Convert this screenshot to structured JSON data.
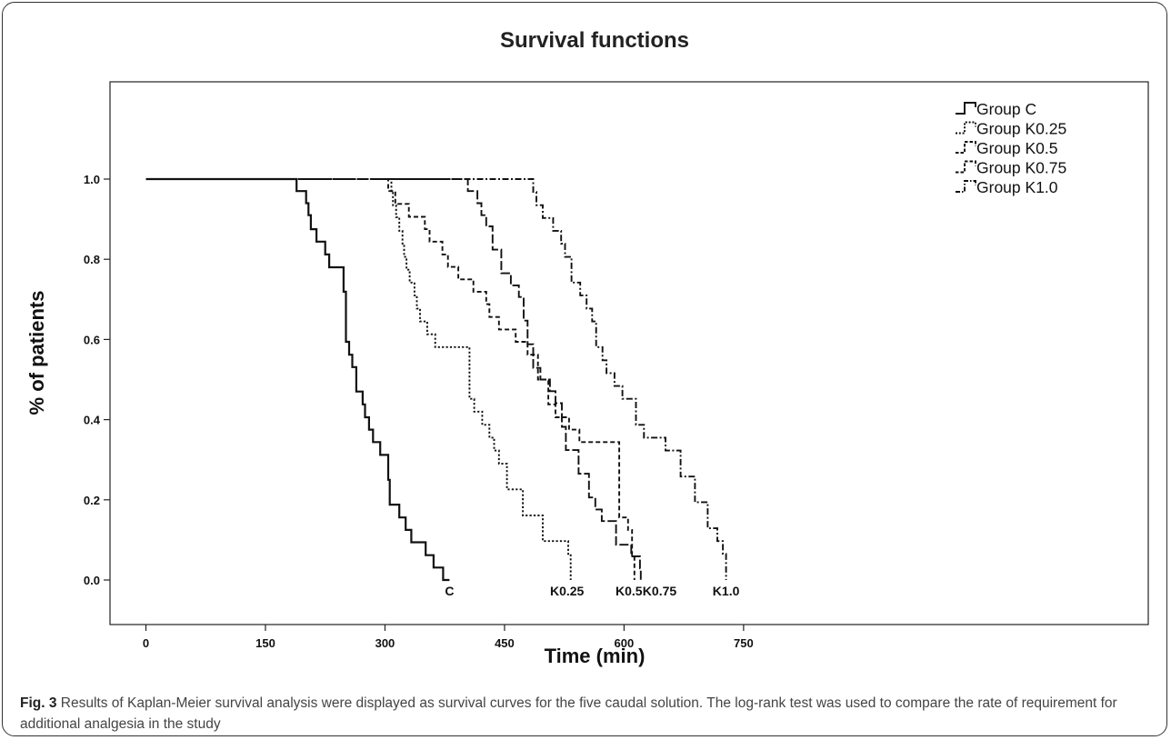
{
  "chart_data": {
    "type": "line",
    "title": "Survival functions",
    "xlabel": "Time (min)",
    "ylabel": "% of patients",
    "xlim": [
      -20,
      800
    ],
    "ylim": [
      -0.05,
      1.05
    ],
    "x_ticks": [
      0,
      150,
      300,
      450,
      600,
      750
    ],
    "y_ticks": [
      0.0,
      0.2,
      0.4,
      0.6,
      0.8,
      1.0
    ],
    "x_tick_labels": [
      "0",
      "150",
      "300",
      "450",
      "600",
      "750"
    ],
    "y_tick_labels": [
      "0.0",
      "0.2",
      "0.4",
      "0.6",
      "0.8",
      "1.0"
    ],
    "legend_position": "top-right",
    "step": true,
    "series": [
      {
        "name": "Group C",
        "end_label": "C",
        "dash": "solid",
        "x": [
          0,
          185,
          189,
          201,
          204,
          207,
          214,
          225,
          230,
          248,
          251,
          255,
          259,
          264,
          272,
          275,
          280,
          285,
          294,
          304,
          306,
          318,
          326,
          333,
          351,
          361,
          373,
          381
        ],
        "y": [
          1.0,
          1.0,
          0.97,
          0.94,
          0.91,
          0.875,
          0.844,
          0.812,
          0.78,
          0.719,
          0.594,
          0.562,
          0.531,
          0.47,
          0.438,
          0.406,
          0.375,
          0.344,
          0.312,
          0.25,
          0.188,
          0.156,
          0.125,
          0.094,
          0.062,
          0.031,
          0.0,
          0.0
        ]
      },
      {
        "name": "Group K0.25",
        "end_label": "K0.25",
        "dash": "dotted",
        "x": [
          0,
          305,
          308,
          310,
          314,
          318,
          322,
          324,
          327,
          331,
          337,
          340,
          344,
          353,
          363,
          406,
          412,
          422,
          431,
          437,
          443,
          453,
          473,
          498,
          530,
          533
        ],
        "y": [
          1.0,
          1.0,
          0.97,
          0.935,
          0.905,
          0.871,
          0.839,
          0.806,
          0.774,
          0.742,
          0.71,
          0.677,
          0.645,
          0.613,
          0.581,
          0.452,
          0.42,
          0.387,
          0.355,
          0.323,
          0.29,
          0.226,
          0.161,
          0.097,
          0.065,
          0.0
        ]
      },
      {
        "name": "Group K0.5",
        "end_label": "K0.5",
        "dash": "dashed",
        "x": [
          0,
          300,
          304,
          313,
          330,
          350,
          356,
          372,
          379,
          392,
          411,
          427,
          431,
          443,
          464,
          479,
          492,
          505,
          514,
          531,
          544,
          594,
          605,
          610,
          613
        ],
        "y": [
          1.0,
          1.0,
          0.97,
          0.938,
          0.906,
          0.875,
          0.844,
          0.812,
          0.781,
          0.75,
          0.719,
          0.688,
          0.656,
          0.625,
          0.594,
          0.562,
          0.5,
          0.438,
          0.406,
          0.375,
          0.344,
          0.156,
          0.125,
          0.062,
          0.0
        ]
      },
      {
        "name": "Group K0.75",
        "end_label": "K0.75",
        "dash": "longdash",
        "x": [
          0,
          399,
          404,
          416,
          421,
          427,
          435,
          446,
          458,
          468,
          474,
          479,
          486,
          495,
          507,
          514,
          522,
          527,
          543,
          556,
          564,
          572,
          590,
          609,
          620,
          621
        ],
        "y": [
          1.0,
          1.0,
          0.97,
          0.94,
          0.91,
          0.882,
          0.824,
          0.765,
          0.735,
          0.706,
          0.647,
          0.588,
          0.529,
          0.5,
          0.471,
          0.441,
          0.382,
          0.324,
          0.265,
          0.206,
          0.176,
          0.147,
          0.088,
          0.059,
          0.029,
          0.0
        ]
      },
      {
        "name": "Group K1.0",
        "end_label": "K1.0",
        "dash": "dashdot",
        "x": [
          0,
          483,
          486,
          490,
          498,
          511,
          521,
          526,
          534,
          545,
          553,
          560,
          565,
          573,
          578,
          588,
          598,
          615,
          625,
          652,
          671,
          689,
          705,
          717,
          724,
          728
        ],
        "y": [
          1.0,
          1.0,
          0.968,
          0.935,
          0.903,
          0.871,
          0.839,
          0.806,
          0.742,
          0.71,
          0.677,
          0.645,
          0.581,
          0.548,
          0.516,
          0.484,
          0.452,
          0.387,
          0.355,
          0.323,
          0.258,
          0.194,
          0.129,
          0.097,
          0.065,
          0.0
        ]
      }
    ]
  },
  "caption": {
    "label": "Fig. 3",
    "text": " Results of Kaplan-Meier survival analysis were displayed as survival curves for the five caudal solution. The log-rank test was used to compare the rate of requirement for additional analgesia in the study"
  }
}
